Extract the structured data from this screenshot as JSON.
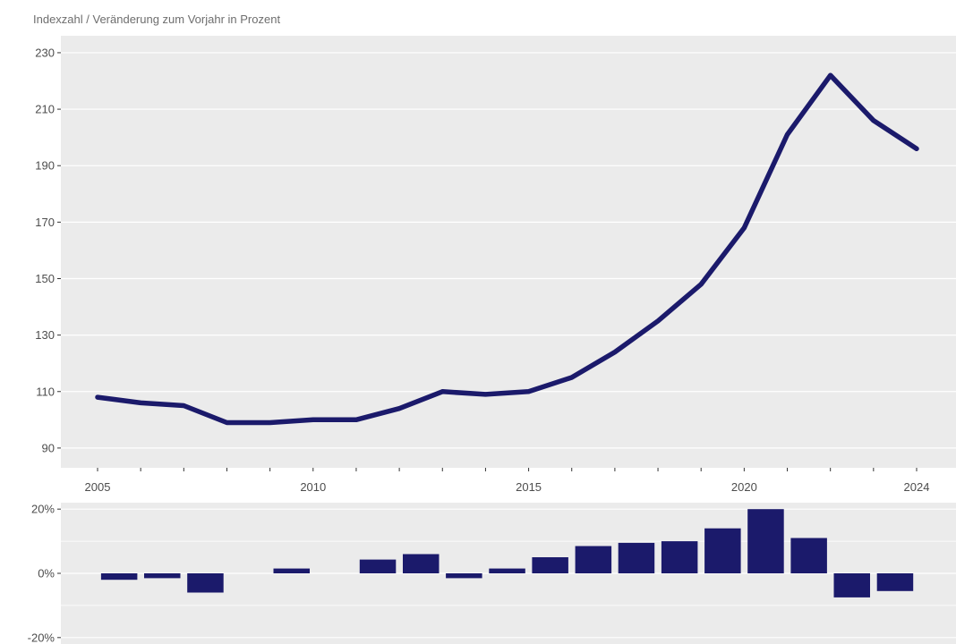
{
  "subtitle": "Indexzahl / Veränderung zum Vorjahr in Prozent",
  "colors": {
    "panel": "#ebebeb",
    "grid": "#ffffff",
    "series": "#1b1a6b",
    "axis_text": "#4d4d4d"
  },
  "chart_data": [
    {
      "type": "line",
      "x": [
        2005,
        2006,
        2007,
        2008,
        2009,
        2010,
        2011,
        2012,
        2013,
        2014,
        2015,
        2016,
        2017,
        2018,
        2019,
        2020,
        2021,
        2022,
        2023,
        2024
      ],
      "values": [
        108,
        106,
        105,
        99,
        99,
        100,
        100,
        104,
        110,
        109,
        110,
        115,
        124,
        135,
        148,
        168,
        201,
        222,
        206,
        196
      ],
      "ylim": [
        83,
        236
      ],
      "yticks": [
        90,
        110,
        130,
        150,
        170,
        190,
        210,
        230
      ],
      "ytick_labels": [
        "90",
        "110",
        "130",
        "150",
        "170",
        "190",
        "210",
        "230"
      ],
      "xticks": [
        2005,
        2006,
        2007,
        2008,
        2009,
        2010,
        2011,
        2012,
        2013,
        2014,
        2015,
        2016,
        2017,
        2018,
        2019,
        2020,
        2021,
        2022,
        2023,
        2024
      ],
      "xtick_labels": [
        "2005",
        "",
        "",
        "",
        "",
        "2010",
        "",
        "",
        "",
        "",
        "2015",
        "",
        "",
        "",
        "",
        "2020",
        "",
        "",
        "",
        "2024"
      ],
      "grid": true
    },
    {
      "type": "bar",
      "x": [
        2006,
        2007,
        2008,
        2009,
        2010,
        2011,
        2012,
        2013,
        2014,
        2015,
        2016,
        2017,
        2018,
        2019,
        2020,
        2021,
        2022,
        2023,
        2024
      ],
      "values": [
        -2,
        -1.5,
        -6,
        0,
        1.5,
        0,
        4.3,
        6,
        -1.5,
        1.5,
        5,
        8.5,
        9.5,
        10,
        14,
        20,
        11,
        -7.5,
        -5.5
      ],
      "ylim": [
        -22,
        22
      ],
      "yticks": [
        -20,
        0,
        20
      ],
      "ytick_labels": [
        "-20%",
        "0%",
        "20%"
      ],
      "grid": true
    }
  ]
}
